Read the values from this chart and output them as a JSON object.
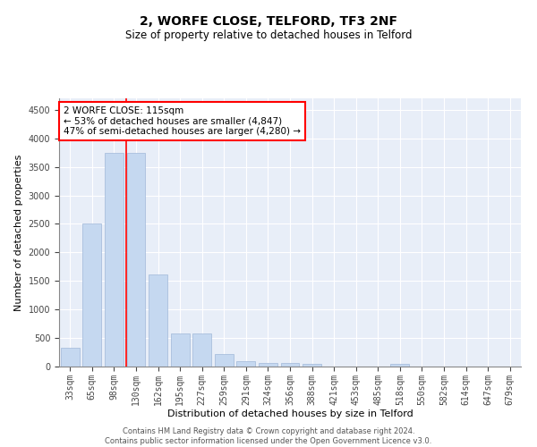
{
  "title": "2, WORFE CLOSE, TELFORD, TF3 2NF",
  "subtitle": "Size of property relative to detached houses in Telford",
  "xlabel": "Distribution of detached houses by size in Telford",
  "ylabel": "Number of detached properties",
  "categories": [
    "33sqm",
    "65sqm",
    "98sqm",
    "130sqm",
    "162sqm",
    "195sqm",
    "227sqm",
    "259sqm",
    "291sqm",
    "324sqm",
    "356sqm",
    "388sqm",
    "421sqm",
    "453sqm",
    "485sqm",
    "518sqm",
    "550sqm",
    "582sqm",
    "614sqm",
    "647sqm",
    "679sqm"
  ],
  "values": [
    330,
    2500,
    3750,
    3750,
    1620,
    580,
    580,
    220,
    90,
    55,
    55,
    45,
    0,
    0,
    0,
    45,
    0,
    0,
    0,
    0,
    0
  ],
  "bar_color": "#c5d8f0",
  "bar_edge_color": "#a0b8d8",
  "vline_color": "red",
  "vline_pos": 2.57,
  "annotation_text": "2 WORFE CLOSE: 115sqm\n← 53% of detached houses are smaller (4,847)\n47% of semi-detached houses are larger (4,280) →",
  "annotation_box_color": "white",
  "annotation_box_edge_color": "red",
  "ylim": [
    0,
    4700
  ],
  "yticks": [
    0,
    500,
    1000,
    1500,
    2000,
    2500,
    3000,
    3500,
    4000,
    4500
  ],
  "background_color": "#e8eef8",
  "footer_line1": "Contains HM Land Registry data © Crown copyright and database right 2024.",
  "footer_line2": "Contains public sector information licensed under the Open Government Licence v3.0.",
  "title_fontsize": 10,
  "subtitle_fontsize": 8.5,
  "annotation_fontsize": 7.5,
  "ylabel_fontsize": 8,
  "xlabel_fontsize": 8,
  "tick_fontsize": 7
}
